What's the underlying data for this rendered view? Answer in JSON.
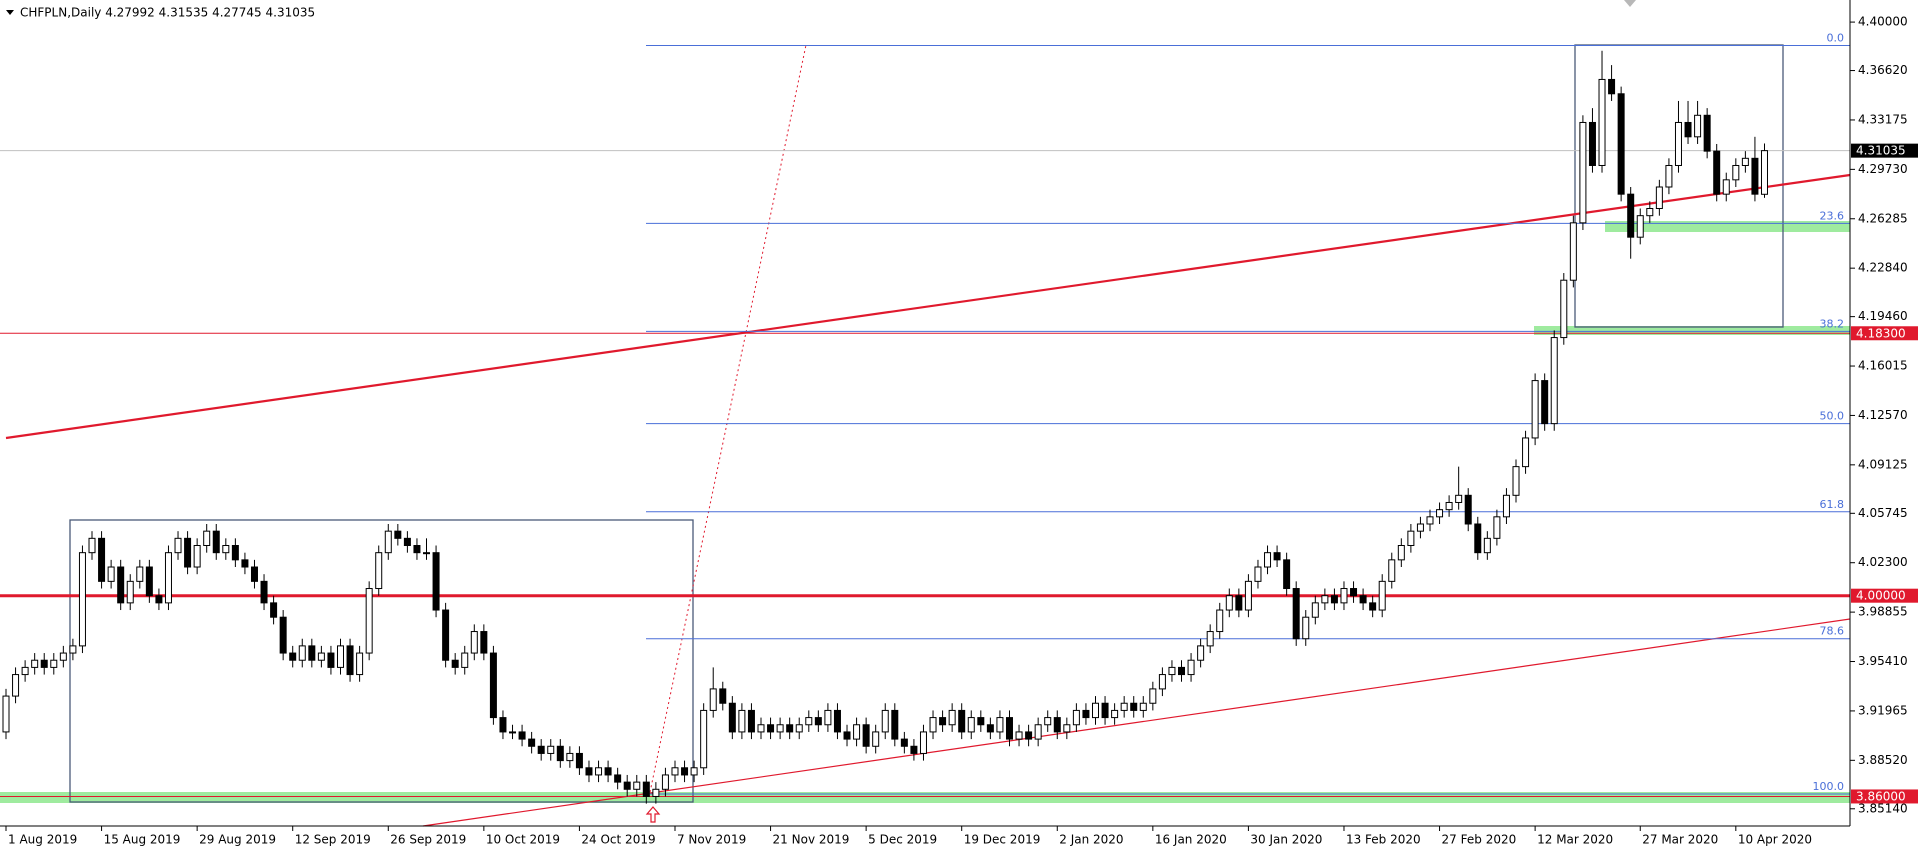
{
  "chart_data": {
    "type": "candlestick",
    "title": "CHFPLN,Daily  4.27992 4.31535 4.27745 4.31035",
    "categories": [
      "1 Aug 2019",
      null,
      null,
      null,
      null,
      null,
      null,
      null,
      null,
      null,
      "15 Aug 2019",
      null,
      null,
      null,
      null,
      null,
      null,
      null,
      null,
      null,
      "29 Aug 2019",
      null,
      null,
      null,
      null,
      null,
      null,
      null,
      null,
      null,
      "12 Sep 2019",
      null,
      null,
      null,
      null,
      null,
      null,
      null,
      null,
      null,
      "26 Sep 2019",
      null,
      null,
      null,
      null,
      null,
      null,
      null,
      null,
      null,
      "10 Oct 2019",
      null,
      null,
      null,
      null,
      null,
      null,
      null,
      null,
      null,
      "24 Oct 2019",
      null,
      null,
      null,
      null,
      null,
      null,
      null,
      null,
      null,
      "7 Nov 2019",
      null,
      null,
      null,
      null,
      null,
      null,
      null,
      null,
      null,
      "21 Nov 2019",
      null,
      null,
      null,
      null,
      null,
      null,
      null,
      null,
      null,
      "5 Dec 2019",
      null,
      null,
      null,
      null,
      null,
      null,
      null,
      null,
      null,
      "19 Dec 2019",
      null,
      null,
      null,
      null,
      null,
      null,
      null,
      null,
      null,
      "2 Jan 2020",
      null,
      null,
      null,
      null,
      null,
      null,
      null,
      null,
      null,
      "16 Jan 2020",
      null,
      null,
      null,
      null,
      null,
      null,
      null,
      null,
      null,
      "30 Jan 2020",
      null,
      null,
      null,
      null,
      null,
      null,
      null,
      null,
      null,
      "13 Feb 2020",
      null,
      null,
      null,
      null,
      null,
      null,
      null,
      null,
      null,
      "27 Feb 2020",
      null,
      null,
      null,
      null,
      null,
      null,
      null,
      null,
      null,
      "12 Mar 2020",
      null,
      null,
      null,
      null,
      null,
      null,
      null,
      null,
      null,
      null,
      "27 Mar 2020",
      null,
      null,
      null,
      null,
      null,
      null,
      null,
      null,
      null,
      "10 Apr 2020",
      null,
      null,
      null
    ],
    "candles": [
      [
        3.905,
        3.935,
        3.9,
        3.93
      ],
      [
        3.93,
        3.95,
        3.925,
        3.945
      ],
      [
        3.945,
        3.955,
        3.94,
        3.95
      ],
      [
        3.95,
        3.96,
        3.945,
        3.955
      ],
      [
        3.955,
        3.96,
        3.945,
        3.95
      ],
      [
        3.95,
        3.96,
        3.945,
        3.955
      ],
      [
        3.955,
        3.965,
        3.95,
        3.96
      ],
      [
        3.96,
        3.97,
        3.955,
        3.965
      ],
      [
        3.965,
        4.035,
        3.96,
        4.03
      ],
      [
        4.03,
        4.045,
        4.025,
        4.04
      ],
      [
        4.04,
        4.045,
        4.005,
        4.01
      ],
      [
        4.01,
        4.025,
        4.005,
        4.02
      ],
      [
        4.02,
        4.025,
        3.99,
        3.995
      ],
      [
        3.995,
        4.015,
        3.99,
        4.01
      ],
      [
        4.01,
        4.025,
        4.005,
        4.02
      ],
      [
        4.02,
        4.025,
        3.995,
        4.0
      ],
      [
        4.0,
        4.005,
        3.99,
        3.995
      ],
      [
        3.995,
        4.035,
        3.99,
        4.03
      ],
      [
        4.03,
        4.045,
        4.025,
        4.04
      ],
      [
        4.04,
        4.045,
        4.015,
        4.02
      ],
      [
        4.02,
        4.04,
        4.015,
        4.035
      ],
      [
        4.035,
        4.05,
        4.03,
        4.045
      ],
      [
        4.045,
        4.05,
        4.025,
        4.03
      ],
      [
        4.03,
        4.04,
        4.025,
        4.035
      ],
      [
        4.035,
        4.04,
        4.02,
        4.025
      ],
      [
        4.025,
        4.03,
        4.015,
        4.02
      ],
      [
        4.02,
        4.025,
        4.005,
        4.01
      ],
      [
        4.01,
        4.015,
        3.99,
        3.995
      ],
      [
        3.995,
        4.0,
        3.98,
        3.985
      ],
      [
        3.985,
        3.99,
        3.955,
        3.96
      ],
      [
        3.96,
        3.965,
        3.95,
        3.955
      ],
      [
        3.955,
        3.97,
        3.95,
        3.965
      ],
      [
        3.965,
        3.97,
        3.95,
        3.955
      ],
      [
        3.955,
        3.965,
        3.95,
        3.96
      ],
      [
        3.96,
        3.965,
        3.945,
        3.95
      ],
      [
        3.95,
        3.97,
        3.945,
        3.965
      ],
      [
        3.965,
        3.97,
        3.94,
        3.945
      ],
      [
        3.945,
        3.965,
        3.94,
        3.96
      ],
      [
        3.96,
        4.01,
        3.955,
        4.005
      ],
      [
        4.005,
        4.035,
        4.0,
        4.03
      ],
      [
        4.03,
        4.05,
        4.025,
        4.045
      ],
      [
        4.045,
        4.05,
        4.035,
        4.04
      ],
      [
        4.04,
        4.045,
        4.03,
        4.035
      ],
      [
        4.035,
        4.04,
        4.025,
        4.03
      ],
      [
        4.03,
        4.04,
        4.025,
        4.03
      ],
      [
        4.03,
        4.035,
        3.985,
        3.99
      ],
      [
        3.99,
        3.995,
        3.95,
        3.955
      ],
      [
        3.955,
        3.96,
        3.945,
        3.95
      ],
      [
        3.95,
        3.965,
        3.945,
        3.96
      ],
      [
        3.96,
        3.98,
        3.955,
        3.975
      ],
      [
        3.975,
        3.98,
        3.955,
        3.96
      ],
      [
        3.96,
        3.965,
        3.91,
        3.915
      ],
      [
        3.915,
        3.92,
        3.9,
        3.905
      ],
      [
        3.905,
        3.91,
        3.9,
        3.905
      ],
      [
        3.905,
        3.91,
        3.895,
        3.9
      ],
      [
        3.9,
        3.905,
        3.89,
        3.895
      ],
      [
        3.895,
        3.9,
        3.885,
        3.89
      ],
      [
        3.89,
        3.9,
        3.885,
        3.895
      ],
      [
        3.895,
        3.9,
        3.88,
        3.885
      ],
      [
        3.885,
        3.895,
        3.88,
        3.89
      ],
      [
        3.89,
        3.895,
        3.875,
        3.88
      ],
      [
        3.88,
        3.885,
        3.87,
        3.875
      ],
      [
        3.875,
        3.885,
        3.87,
        3.88
      ],
      [
        3.88,
        3.885,
        3.87,
        3.875
      ],
      [
        3.875,
        3.88,
        3.865,
        3.87
      ],
      [
        3.87,
        3.875,
        3.86,
        3.865
      ],
      [
        3.865,
        3.875,
        3.86,
        3.87
      ],
      [
        3.87,
        3.875,
        3.855,
        3.86
      ],
      [
        3.86,
        3.87,
        3.855,
        3.865
      ],
      [
        3.865,
        3.88,
        3.86,
        3.875
      ],
      [
        3.875,
        3.885,
        3.87,
        3.88
      ],
      [
        3.88,
        3.885,
        3.87,
        3.875
      ],
      [
        3.875,
        3.885,
        3.87,
        3.88
      ],
      [
        3.88,
        3.925,
        3.875,
        3.92
      ],
      [
        3.92,
        3.95,
        3.915,
        3.935
      ],
      [
        3.935,
        3.94,
        3.92,
        3.925
      ],
      [
        3.925,
        3.93,
        3.9,
        3.905
      ],
      [
        3.905,
        3.925,
        3.9,
        3.92
      ],
      [
        3.92,
        3.925,
        3.9,
        3.905
      ],
      [
        3.905,
        3.915,
        3.9,
        3.91
      ],
      [
        3.91,
        3.915,
        3.9,
        3.905
      ],
      [
        3.905,
        3.915,
        3.9,
        3.91
      ],
      [
        3.91,
        3.915,
        3.9,
        3.905
      ],
      [
        3.905,
        3.915,
        3.9,
        3.91
      ],
      [
        3.91,
        3.92,
        3.905,
        3.915
      ],
      [
        3.915,
        3.92,
        3.905,
        3.91
      ],
      [
        3.91,
        3.925,
        3.905,
        3.92
      ],
      [
        3.92,
        3.925,
        3.9,
        3.905
      ],
      [
        3.905,
        3.91,
        3.895,
        3.9
      ],
      [
        3.9,
        3.915,
        3.895,
        3.91
      ],
      [
        3.91,
        3.915,
        3.89,
        3.895
      ],
      [
        3.895,
        3.91,
        3.89,
        3.905
      ],
      [
        3.905,
        3.925,
        3.9,
        3.92
      ],
      [
        3.92,
        3.925,
        3.895,
        3.9
      ],
      [
        3.9,
        3.905,
        3.89,
        3.895
      ],
      [
        3.895,
        3.9,
        3.885,
        3.89
      ],
      [
        3.89,
        3.91,
        3.885,
        3.905
      ],
      [
        3.905,
        3.92,
        3.9,
        3.915
      ],
      [
        3.915,
        3.92,
        3.905,
        3.91
      ],
      [
        3.91,
        3.925,
        3.905,
        3.92
      ],
      [
        3.92,
        3.925,
        3.9,
        3.905
      ],
      [
        3.905,
        3.92,
        3.9,
        3.915
      ],
      [
        3.915,
        3.92,
        3.905,
        3.91
      ],
      [
        3.91,
        3.915,
        3.9,
        3.905
      ],
      [
        3.905,
        3.92,
        3.9,
        3.915
      ],
      [
        3.915,
        3.92,
        3.895,
        3.9
      ],
      [
        3.9,
        3.91,
        3.895,
        3.905
      ],
      [
        3.905,
        3.91,
        3.895,
        3.9
      ],
      [
        3.9,
        3.915,
        3.895,
        3.91
      ],
      [
        3.91,
        3.92,
        3.905,
        3.915
      ],
      [
        3.915,
        3.92,
        3.9,
        3.905
      ],
      [
        3.905,
        3.915,
        3.9,
        3.91
      ],
      [
        3.91,
        3.925,
        3.905,
        3.92
      ],
      [
        3.92,
        3.925,
        3.91,
        3.915
      ],
      [
        3.915,
        3.93,
        3.91,
        3.925
      ],
      [
        3.925,
        3.93,
        3.91,
        3.915
      ],
      [
        3.915,
        3.925,
        3.91,
        3.92
      ],
      [
        3.92,
        3.93,
        3.915,
        3.925
      ],
      [
        3.925,
        3.93,
        3.915,
        3.92
      ],
      [
        3.92,
        3.93,
        3.915,
        3.925
      ],
      [
        3.925,
        3.94,
        3.92,
        3.935
      ],
      [
        3.935,
        3.95,
        3.93,
        3.945
      ],
      [
        3.945,
        3.955,
        3.94,
        3.95
      ],
      [
        3.95,
        3.955,
        3.94,
        3.945
      ],
      [
        3.945,
        3.96,
        3.94,
        3.955
      ],
      [
        3.955,
        3.97,
        3.95,
        3.965
      ],
      [
        3.965,
        3.98,
        3.96,
        3.975
      ],
      [
        3.975,
        3.995,
        3.97,
        3.99
      ],
      [
        3.99,
        4.005,
        3.985,
        4.0
      ],
      [
        4.0,
        4.005,
        3.985,
        3.99
      ],
      [
        3.99,
        4.015,
        3.985,
        4.01
      ],
      [
        4.01,
        4.025,
        4.005,
        4.02
      ],
      [
        4.02,
        4.035,
        4.015,
        4.03
      ],
      [
        4.03,
        4.035,
        4.02,
        4.025
      ],
      [
        4.025,
        4.03,
        4.0,
        4.005
      ],
      [
        4.005,
        4.01,
        3.965,
        3.97
      ],
      [
        3.97,
        3.99,
        3.965,
        3.985
      ],
      [
        3.985,
        4.0,
        3.98,
        3.995
      ],
      [
        3.995,
        4.005,
        3.99,
        4.0
      ],
      [
        4.0,
        4.005,
        3.99,
        3.995
      ],
      [
        3.995,
        4.01,
        3.99,
        4.005
      ],
      [
        4.005,
        4.01,
        3.995,
        4.0
      ],
      [
        4.0,
        4.005,
        3.99,
        3.995
      ],
      [
        3.995,
        4.0,
        3.985,
        3.99
      ],
      [
        3.99,
        4.015,
        3.985,
        4.01
      ],
      [
        4.01,
        4.03,
        4.005,
        4.025
      ],
      [
        4.025,
        4.04,
        4.02,
        4.035
      ],
      [
        4.035,
        4.05,
        4.03,
        4.045
      ],
      [
        4.045,
        4.055,
        4.04,
        4.05
      ],
      [
        4.05,
        4.06,
        4.045,
        4.055
      ],
      [
        4.055,
        4.065,
        4.05,
        4.06
      ],
      [
        4.06,
        4.07,
        4.055,
        4.065
      ],
      [
        4.065,
        4.09,
        4.06,
        4.07
      ],
      [
        4.07,
        4.075,
        4.045,
        4.05
      ],
      [
        4.05,
        4.055,
        4.025,
        4.03
      ],
      [
        4.03,
        4.045,
        4.025,
        4.04
      ],
      [
        4.04,
        4.06,
        4.035,
        4.055
      ],
      [
        4.055,
        4.075,
        4.05,
        4.07
      ],
      [
        4.07,
        4.095,
        4.065,
        4.09
      ],
      [
        4.09,
        4.115,
        4.085,
        4.11
      ],
      [
        4.11,
        4.155,
        4.105,
        4.15
      ],
      [
        4.15,
        4.155,
        4.115,
        4.12
      ],
      [
        4.12,
        4.185,
        4.115,
        4.18
      ],
      [
        4.18,
        4.225,
        4.175,
        4.22
      ],
      [
        4.22,
        4.265,
        4.215,
        4.26
      ],
      [
        4.26,
        4.335,
        4.255,
        4.33
      ],
      [
        4.33,
        4.34,
        4.295,
        4.3
      ],
      [
        4.3,
        4.38,
        4.295,
        4.36
      ],
      [
        4.36,
        4.37,
        4.345,
        4.35
      ],
      [
        4.35,
        4.355,
        4.275,
        4.28
      ],
      [
        4.28,
        4.285,
        4.235,
        4.25
      ],
      [
        4.25,
        4.27,
        4.245,
        4.265
      ],
      [
        4.265,
        4.275,
        4.26,
        4.27
      ],
      [
        4.27,
        4.29,
        4.265,
        4.285
      ],
      [
        4.285,
        4.305,
        4.28,
        4.3
      ],
      [
        4.3,
        4.345,
        4.295,
        4.33
      ],
      [
        4.33,
        4.345,
        4.315,
        4.32
      ],
      [
        4.32,
        4.345,
        4.315,
        4.335
      ],
      [
        4.335,
        4.34,
        4.305,
        4.31
      ],
      [
        4.31,
        4.315,
        4.275,
        4.28
      ],
      [
        4.28,
        4.295,
        4.275,
        4.29
      ],
      [
        4.29,
        4.305,
        4.285,
        4.3
      ],
      [
        4.3,
        4.31,
        4.295,
        4.305
      ],
      [
        4.305,
        4.32,
        4.275,
        4.28
      ],
      [
        4.27992,
        4.31535,
        4.27745,
        4.31035
      ]
    ],
    "up_color": "#ffffff",
    "down_color": "#000000",
    "ylim": [
      3.8394,
      4.4154
    ],
    "yticks": [
      {
        "value": 4.4,
        "label": "4.40000"
      },
      {
        "value": 4.3662,
        "label": "4.36620"
      },
      {
        "value": 4.33175,
        "label": "4.33175"
      },
      {
        "value": 4.2973,
        "label": "4.29730"
      },
      {
        "value": 4.26285,
        "label": "4.26285"
      },
      {
        "value": 4.2284,
        "label": "4.22840"
      },
      {
        "value": 4.1946,
        "label": "4.19460"
      },
      {
        "value": 4.16015,
        "label": "4.16015"
      },
      {
        "value": 4.1257,
        "label": "4.12570"
      },
      {
        "value": 4.09125,
        "label": "4.09125"
      },
      {
        "value": 4.05745,
        "label": "4.05745"
      },
      {
        "value": 4.023,
        "label": "4.02300"
      },
      {
        "value": 3.98855,
        "label": "3.98855"
      },
      {
        "value": 3.9541,
        "label": "3.95410"
      },
      {
        "value": 3.91965,
        "label": "3.91965"
      },
      {
        "value": 3.8852,
        "label": "3.88520"
      },
      {
        "value": 3.8514,
        "label": "3.85140"
      }
    ],
    "grid": false,
    "price_tags": [
      {
        "value": 4.31035,
        "color": "#000000",
        "line_color": "#c0c0c0",
        "line_width": 1
      },
      {
        "value": 4.183,
        "label": "4.18300",
        "color": "#e0192d",
        "line_color": "#e0192d",
        "line_width": 1
      },
      {
        "value": 4.0,
        "label": "4.00000",
        "color": "#e0192d",
        "line_color": "#e0192d",
        "line_width": 3
      },
      {
        "value": 3.86,
        "label": "3.86000",
        "color": "#e0192d",
        "line_color": "#e0192d",
        "line_width": 1
      }
    ],
    "fibonacci": {
      "color": "#4a6fd8",
      "levels": [
        {
          "value": 4.3837,
          "label": "0.0"
        },
        {
          "value": 4.2596,
          "label": "23.6"
        },
        {
          "value": 4.1843,
          "label": "38.2"
        },
        {
          "value": 4.12,
          "label": "50.0"
        },
        {
          "value": 4.0585,
          "label": "61.8"
        },
        {
          "value": 3.97,
          "label": "78.6"
        },
        {
          "value": 3.8617,
          "label": "100.0"
        }
      ]
    }
  }
}
